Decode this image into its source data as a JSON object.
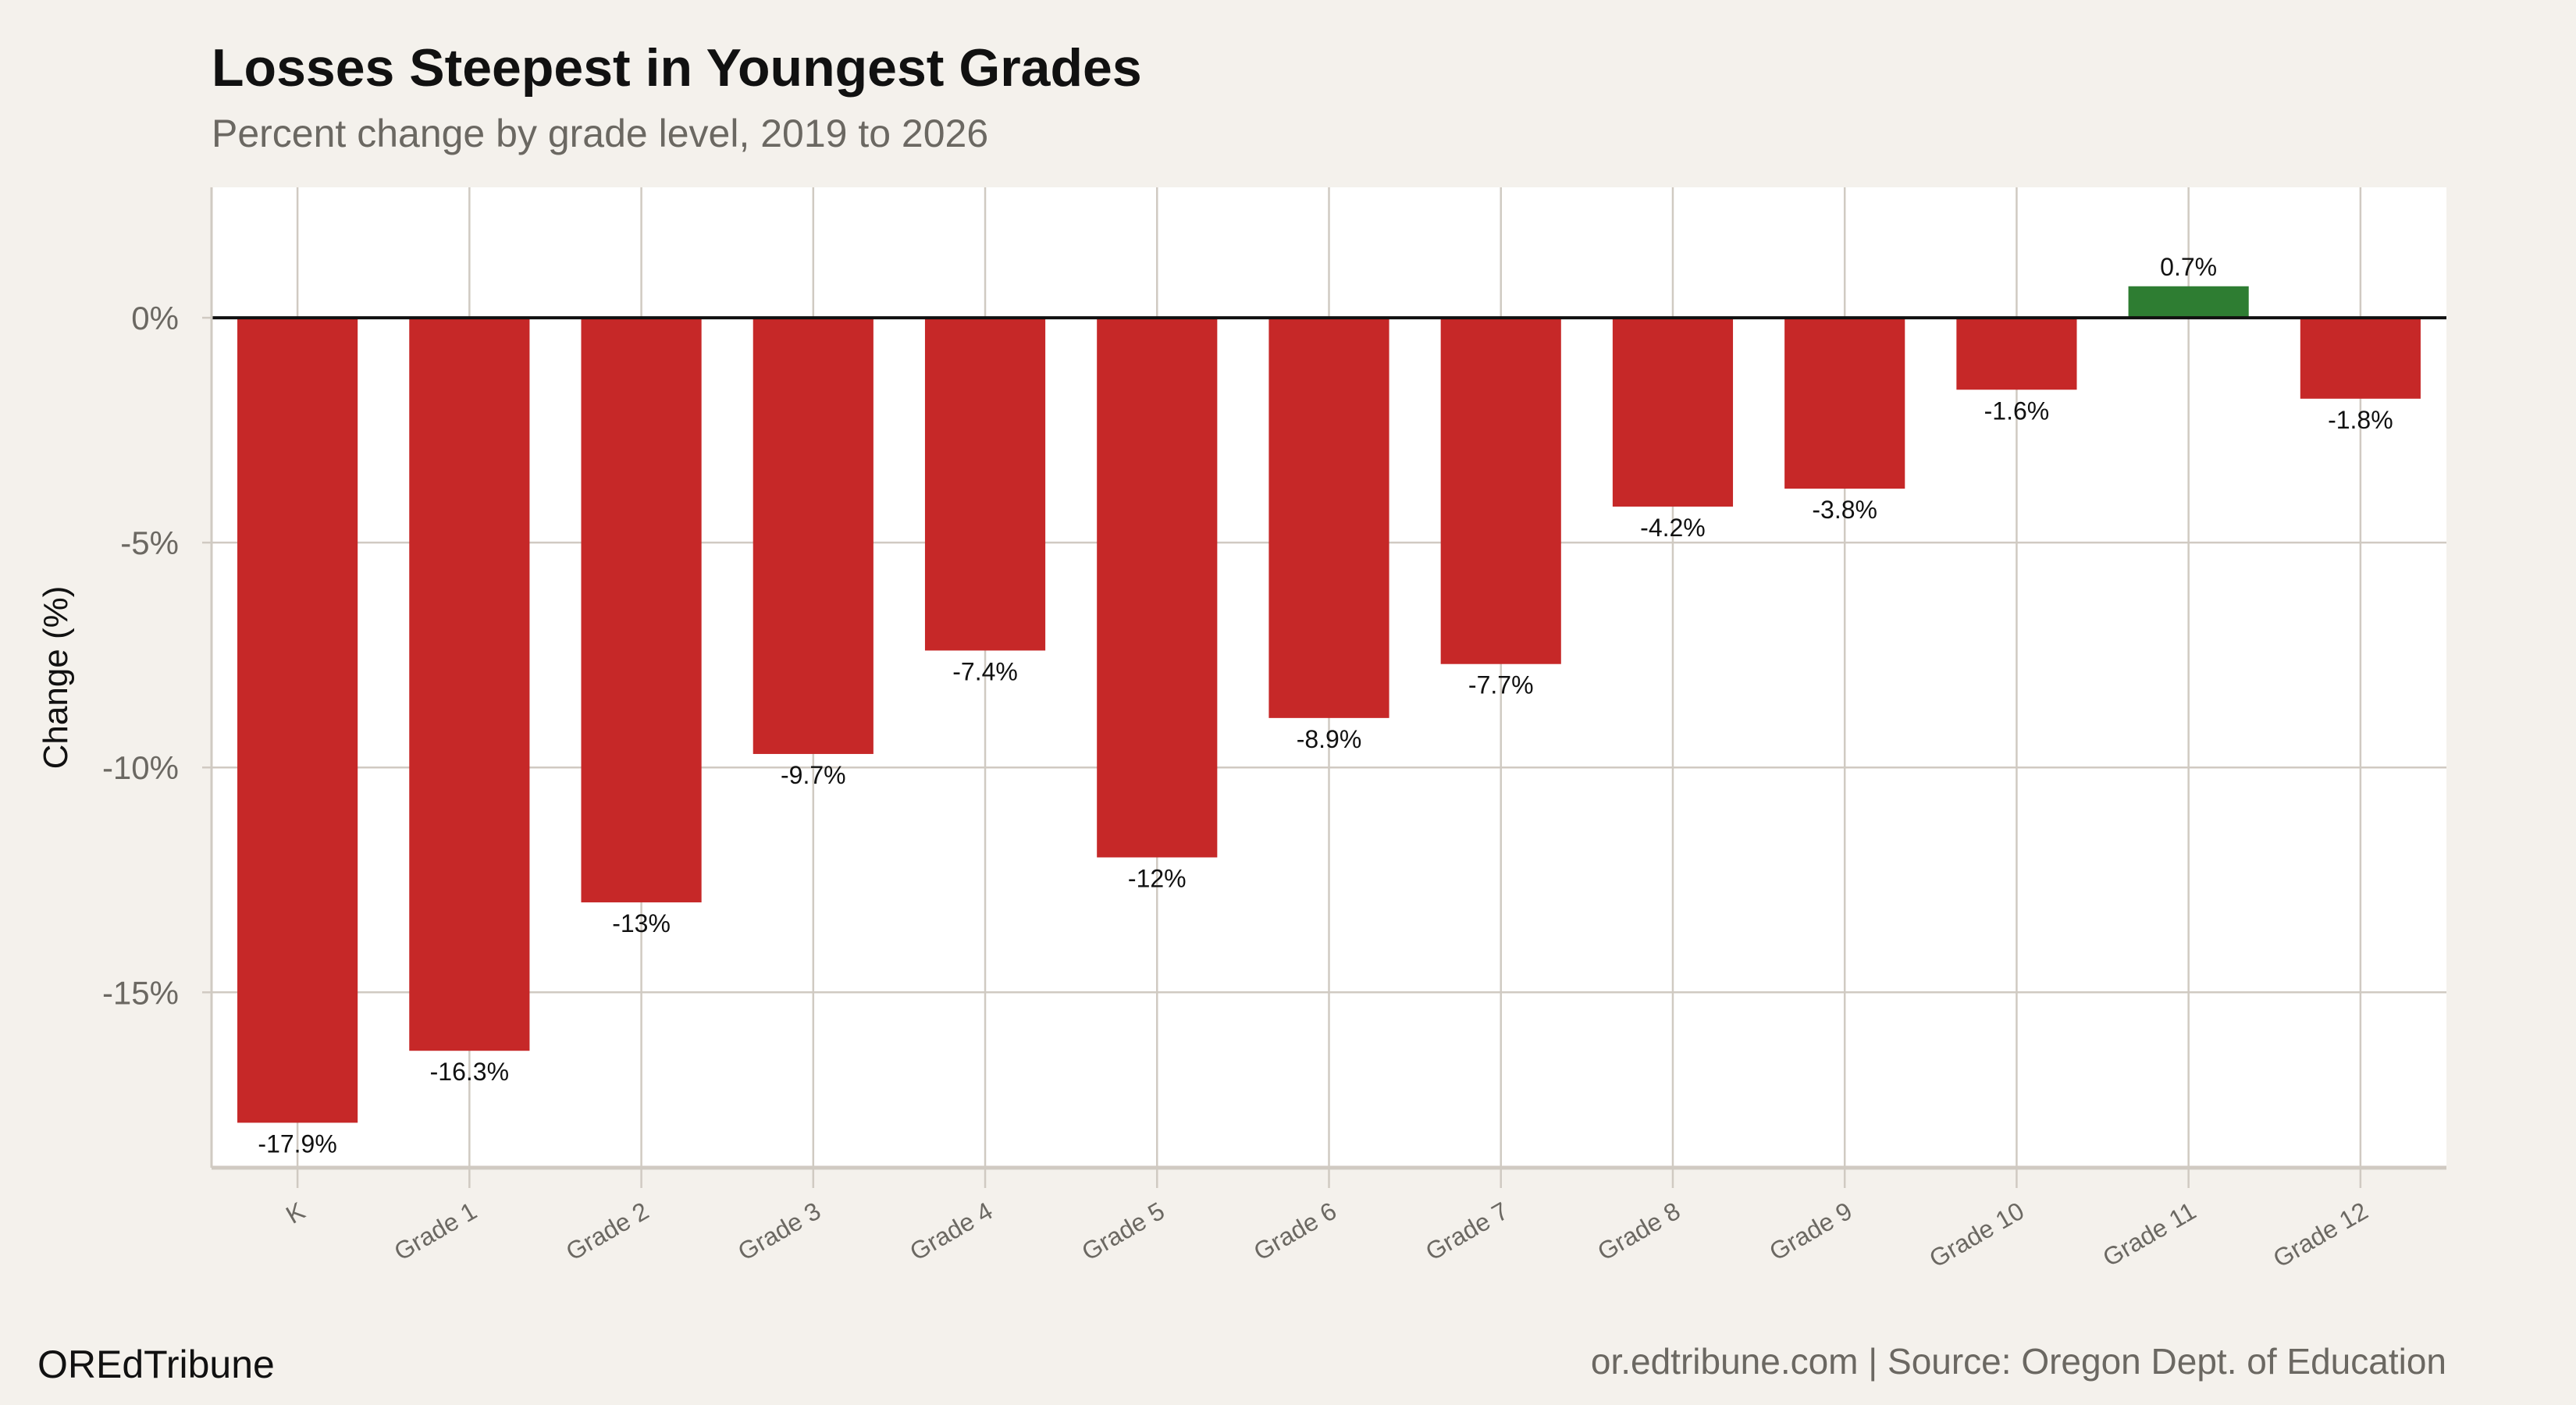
{
  "chart_data": {
    "type": "bar",
    "title": "Losses Steepest in Youngest Grades",
    "subtitle": "Percent change by grade level, 2019 to 2026",
    "xlabel": "",
    "ylabel": "Change (%)",
    "categories": [
      "K",
      "Grade 1",
      "Grade 2",
      "Grade 3",
      "Grade 4",
      "Grade 5",
      "Grade 6",
      "Grade 7",
      "Grade 8",
      "Grade 9",
      "Grade 10",
      "Grade 11",
      "Grade 12"
    ],
    "values": [
      -17.9,
      -16.3,
      -13,
      -9.7,
      -7.4,
      -12,
      -8.9,
      -7.7,
      -4.2,
      -3.8,
      -1.6,
      0.7,
      -1.8
    ],
    "data_labels": [
      "-17.9%",
      "-16.3%",
      "-13%",
      "-9.7%",
      "-7.4%",
      "-12%",
      "-8.9%",
      "-7.7%",
      "-4.2%",
      "-3.8%",
      "-1.6%",
      "0.7%",
      "-1.8%"
    ],
    "ylim": [
      -18.9,
      2.9
    ],
    "yticks": [
      0,
      -5,
      -10,
      -15
    ],
    "ytick_labels": [
      "0%",
      "-5%",
      "-10%",
      "-15%"
    ],
    "grid": true,
    "colors": {
      "negative": "#c62828",
      "positive": "#2e7d32",
      "background": "#f4f1ec",
      "panel": "#ffffff",
      "grid": "#d0cac2",
      "zero_line": "#111111"
    }
  },
  "footer": {
    "brand": "OREdTribune",
    "source": "or.edtribune.com | Source: Oregon Dept. of Education"
  }
}
